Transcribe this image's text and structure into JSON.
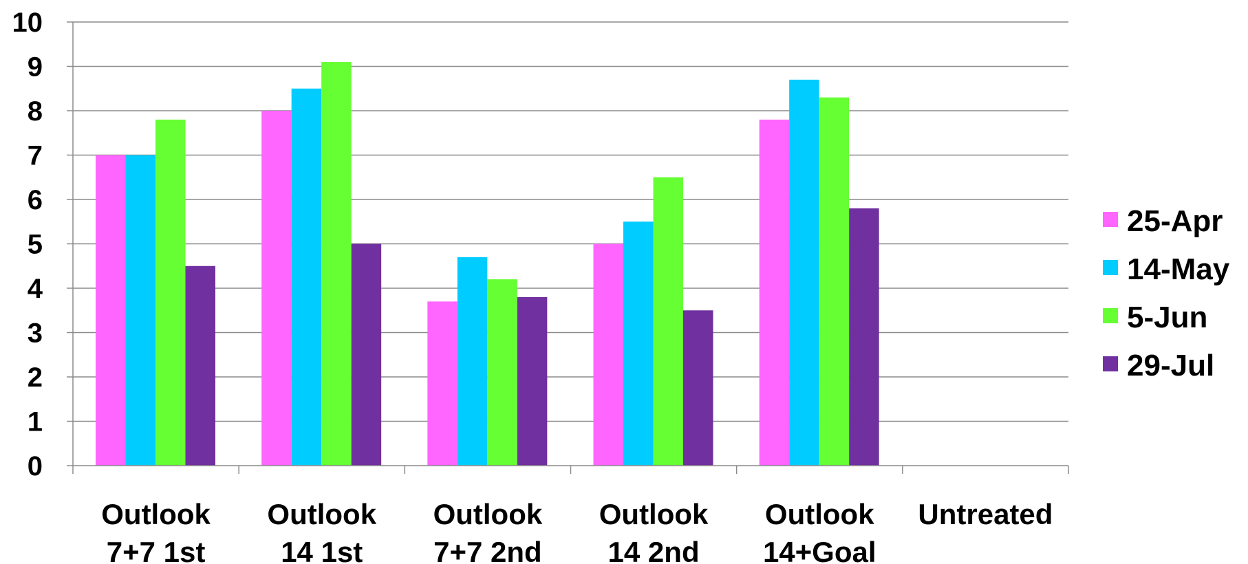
{
  "chart_data": {
    "type": "bar",
    "title": "",
    "xlabel": "",
    "ylabel": "",
    "ylim": [
      0,
      10
    ],
    "yticks": [
      "0",
      "1",
      "2",
      "3",
      "4",
      "5",
      "6",
      "7",
      "8",
      "9",
      "10"
    ],
    "grid": true,
    "legend_position": "right",
    "categories": [
      [
        "Outlook",
        "7+7 1st"
      ],
      [
        "Outlook",
        "14 1st"
      ],
      [
        "Outlook",
        "7+7 2nd"
      ],
      [
        "Outlook",
        "14 2nd"
      ],
      [
        "Outlook",
        "14+Goal"
      ],
      [
        "Untreated"
      ]
    ],
    "series": [
      {
        "name": "25-Apr",
        "color": "#ff66ff",
        "values": [
          7.0,
          8.0,
          3.7,
          5.0,
          7.8,
          null
        ]
      },
      {
        "name": "14-May",
        "color": "#00ccff",
        "values": [
          7.0,
          8.5,
          4.7,
          5.5,
          8.7,
          null
        ]
      },
      {
        "name": "5-Jun",
        "color": "#66ff33",
        "values": [
          7.8,
          9.1,
          4.2,
          6.5,
          8.3,
          null
        ]
      },
      {
        "name": "29-Jul",
        "color": "#7030a0",
        "values": [
          4.5,
          5.0,
          3.8,
          3.5,
          5.8,
          null
        ]
      }
    ]
  }
}
